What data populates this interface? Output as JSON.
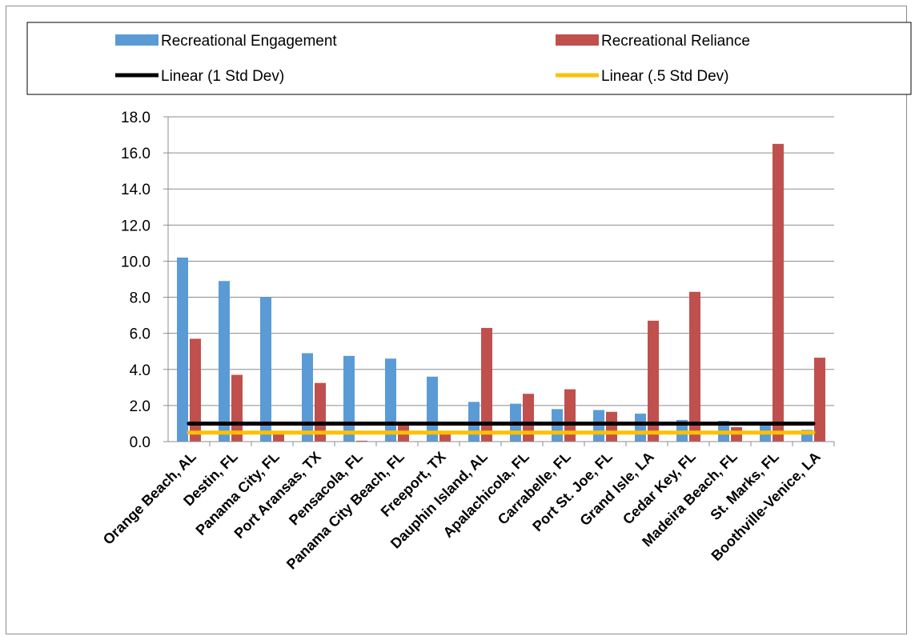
{
  "chart_data": {
    "type": "bar",
    "title": "",
    "xlabel": "",
    "ylabel": "",
    "ylim": [
      0,
      18
    ],
    "yticks": [
      "0.0",
      "2.0",
      "4.0",
      "6.0",
      "8.0",
      "10.0",
      "12.0",
      "14.0",
      "16.0",
      "18.0"
    ],
    "grid": true,
    "legend_position": "top",
    "categories": [
      "Orange Beach, AL",
      "Destin, FL",
      "Panama City, FL",
      "Port Aransas, TX",
      "Pensacola, FL",
      "Panama City Beach, FL",
      "Freeport, TX",
      "Dauphin Island, AL",
      "Apalachicola, FL",
      "Carrabelle, FL",
      "Port St. Joe, FL",
      "Grand Isle, LA",
      "Cedar Key, FL",
      "Madeira Beach, FL",
      "St. Marks, FL",
      "Boothville-Venice, LA"
    ],
    "series": [
      {
        "name": "Recreational Engagement",
        "color": "#5b9bd5",
        "values": [
          10.2,
          8.9,
          8.0,
          4.9,
          4.75,
          4.6,
          3.6,
          2.2,
          2.1,
          1.8,
          1.75,
          1.55,
          1.2,
          1.15,
          1.0,
          0.65
        ]
      },
      {
        "name": "Recreational Reliance",
        "color": "#c0504d",
        "values": [
          5.7,
          3.7,
          0.4,
          3.25,
          0.05,
          0.9,
          0.5,
          6.3,
          2.65,
          2.9,
          1.65,
          6.7,
          8.3,
          0.8,
          16.5,
          4.65
        ]
      }
    ],
    "reference_lines": [
      {
        "name": "Linear (1 Std Dev)",
        "color": "#000000",
        "value": 1.0
      },
      {
        "name": "Linear (.5 Std Dev)",
        "color": "#ffc000",
        "value": 0.5
      }
    ]
  }
}
